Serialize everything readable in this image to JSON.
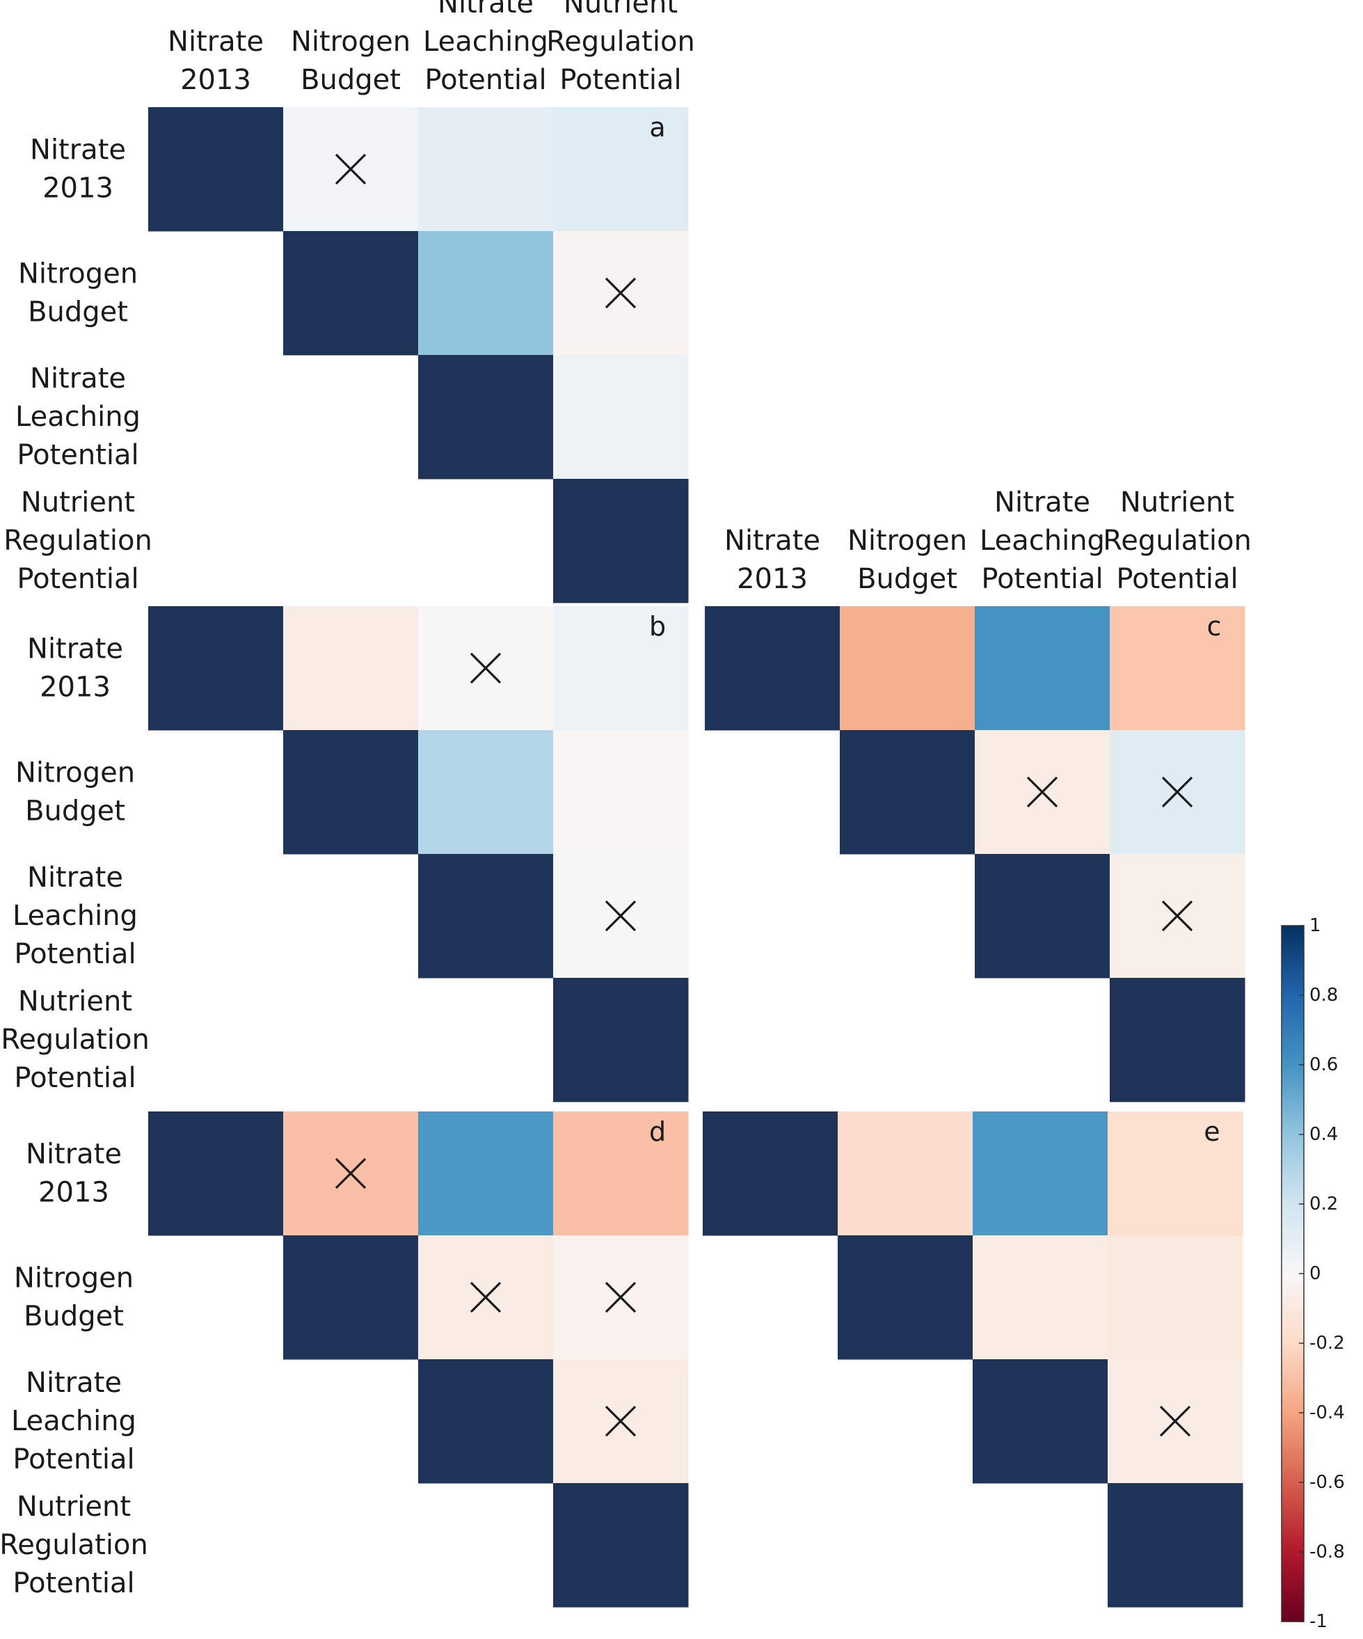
{
  "chart_data": {
    "type": "heatmap",
    "variables": [
      [
        "Nitrate",
        "2013"
      ],
      [
        "Nitrogen",
        "Budget"
      ],
      [
        "Nitrate",
        "Leaching",
        "Potential"
      ],
      [
        "Nutrient",
        "Regulation",
        "Potential"
      ]
    ],
    "panels": [
      {
        "id": "a",
        "label": "a",
        "values": [
          [
            1,
            0.03,
            0.1,
            0.12
          ],
          [
            null,
            1,
            0.4,
            -0.03
          ],
          [
            null,
            null,
            1,
            0.06
          ],
          [
            null,
            null,
            null,
            1
          ]
        ],
        "crossed": [
          [
            0,
            1
          ],
          [
            1,
            3
          ]
        ]
      },
      {
        "id": "b",
        "label": "b",
        "values": [
          [
            1,
            -0.07,
            0.0,
            0.06
          ],
          [
            null,
            1,
            0.3,
            -0.01
          ],
          [
            null,
            null,
            1,
            0.0
          ],
          [
            null,
            null,
            null,
            1
          ]
        ],
        "crossed": [
          [
            0,
            2
          ],
          [
            2,
            3
          ]
        ]
      },
      {
        "id": "c",
        "label": "c",
        "values": [
          [
            1,
            -0.36,
            0.6,
            -0.28
          ],
          [
            null,
            1,
            -0.08,
            0.12
          ],
          [
            null,
            null,
            1,
            -0.06
          ],
          [
            null,
            null,
            null,
            1
          ]
        ],
        "crossed": [
          [
            1,
            2
          ],
          [
            1,
            3
          ],
          [
            2,
            3
          ]
        ]
      },
      {
        "id": "d",
        "label": "d",
        "values": [
          [
            1,
            -0.3,
            0.58,
            -0.3
          ],
          [
            null,
            1,
            -0.08,
            -0.04
          ],
          [
            null,
            null,
            1,
            -0.08
          ],
          [
            null,
            null,
            null,
            1
          ]
        ],
        "crossed": [
          [
            0,
            1
          ],
          [
            1,
            2
          ],
          [
            1,
            3
          ],
          [
            2,
            3
          ]
        ]
      },
      {
        "id": "e",
        "label": "e",
        "values": [
          [
            1,
            -0.18,
            0.58,
            -0.16
          ],
          [
            null,
            1,
            -0.08,
            -0.1
          ],
          [
            null,
            null,
            1,
            -0.07
          ],
          [
            null,
            null,
            null,
            1
          ]
        ],
        "crossed": [
          [
            2,
            3
          ]
        ]
      }
    ],
    "colorbar": {
      "ticks": [
        "1",
        "0.8",
        "0.6",
        "0.4",
        "0.2",
        "0",
        "-0.2",
        "-0.4",
        "-0.6",
        "-0.8",
        "-1"
      ],
      "range": [
        -1,
        1
      ],
      "colors": [
        "#67001F",
        "#B2182B",
        "#D6604D",
        "#F4A582",
        "#FDDBC7",
        "#F7F7F7",
        "#D1E5F0",
        "#92C5DE",
        "#4393C3",
        "#2166AC",
        "#053061"
      ]
    }
  }
}
